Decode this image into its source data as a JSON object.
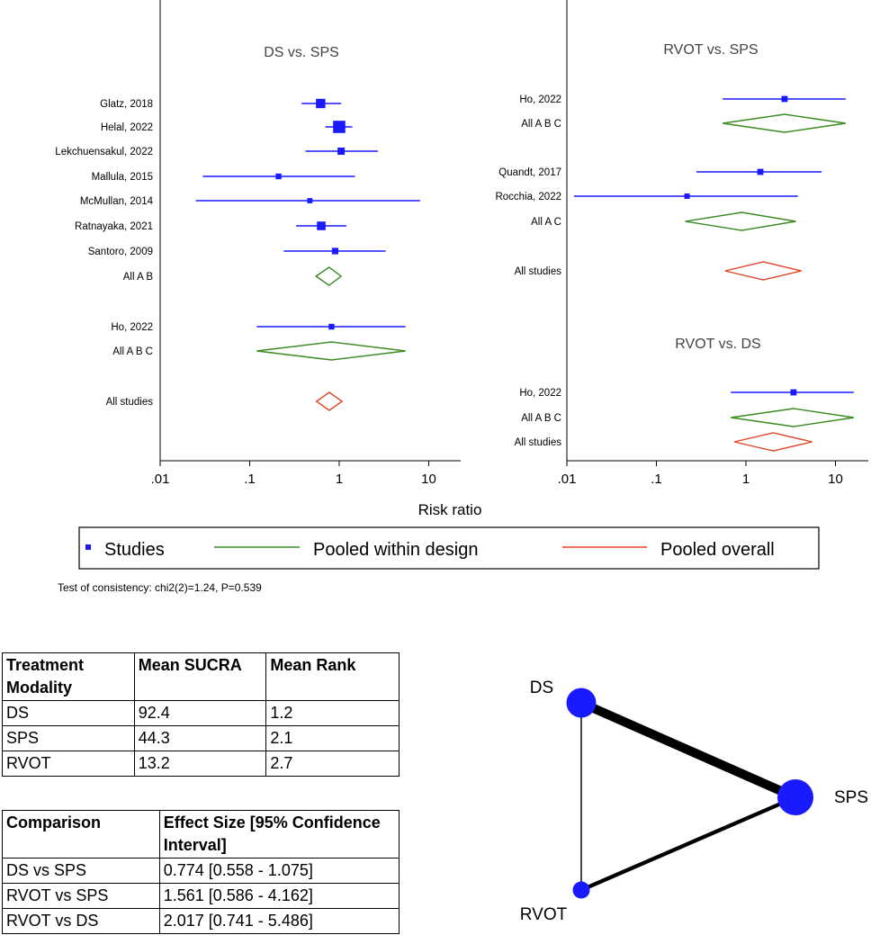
{
  "forest": {
    "xlabel": "Risk ratio",
    "ticks": [
      ".01",
      ".1",
      "1",
      "10"
    ],
    "tick_values": [
      0.01,
      0.1,
      1,
      10
    ],
    "legend": {
      "studies": "Studies",
      "within": "Pooled within design",
      "overall": "Pooled overall"
    },
    "colors": {
      "study": "#1a1aff",
      "within": "#3a8a22",
      "overall": "#e0452a"
    },
    "panels": [
      {
        "title": "DS vs. SPS",
        "rows": [
          {
            "label": "Glatz, 2018",
            "kind": "study",
            "est": 0.62,
            "lo": 0.38,
            "hi": 1.05,
            "weight": 1.6
          },
          {
            "label": "Helal, 2022",
            "kind": "study",
            "est": 1.0,
            "lo": 0.7,
            "hi": 1.4,
            "weight": 2.4
          },
          {
            "label": "Lekchuensakul, 2022",
            "kind": "study",
            "est": 1.05,
            "lo": 0.42,
            "hi": 2.7,
            "weight": 1.0
          },
          {
            "label": "Mallula, 2015",
            "kind": "study",
            "est": 0.21,
            "lo": 0.03,
            "hi": 1.5,
            "weight": 0.6
          },
          {
            "label": "McMullan, 2014",
            "kind": "study",
            "est": 0.47,
            "lo": 0.025,
            "hi": 8.0,
            "weight": 0.45
          },
          {
            "label": "Ratnayaka, 2021",
            "kind": "study",
            "est": 0.63,
            "lo": 0.33,
            "hi": 1.2,
            "weight": 1.4
          },
          {
            "label": "Santoro, 2009",
            "kind": "study",
            "est": 0.9,
            "lo": 0.24,
            "hi": 3.3,
            "weight": 0.8
          },
          {
            "label": "All A B",
            "kind": "within",
            "est": 0.77,
            "lo": 0.55,
            "hi": 1.05
          },
          {
            "label": "Ho, 2022",
            "kind": "study",
            "est": 0.82,
            "lo": 0.12,
            "hi": 5.5,
            "weight": 0.6
          },
          {
            "label": "All A B C",
            "kind": "within",
            "est": 0.82,
            "lo": 0.12,
            "hi": 5.5
          },
          {
            "label": "All studies",
            "kind": "overall",
            "est": 0.774,
            "lo": 0.558,
            "hi": 1.075
          }
        ]
      },
      {
        "title": "RVOT vs. SPS",
        "rows": [
          {
            "label": "Ho, 2022",
            "kind": "study",
            "est": 2.7,
            "lo": 0.55,
            "hi": 13.0,
            "weight": 0.7
          },
          {
            "label": "All A B C",
            "kind": "within",
            "est": 2.7,
            "lo": 0.55,
            "hi": 13.0
          },
          {
            "label": "Quandt, 2017",
            "kind": "study",
            "est": 1.45,
            "lo": 0.28,
            "hi": 7.0,
            "weight": 0.7
          },
          {
            "label": "Rocchia, 2022",
            "kind": "study",
            "est": 0.22,
            "lo": 0.012,
            "hi": 3.8,
            "weight": 0.5
          },
          {
            "label": "All A C",
            "kind": "within",
            "est": 0.9,
            "lo": 0.21,
            "hi": 3.6
          },
          {
            "label": "All studies",
            "kind": "overall",
            "est": 1.561,
            "lo": 0.586,
            "hi": 4.162
          }
        ]
      },
      {
        "title": "RVOT vs. DS",
        "rows": [
          {
            "label": "Ho, 2022",
            "kind": "study",
            "est": 3.4,
            "lo": 0.68,
            "hi": 17.0,
            "weight": 0.7
          },
          {
            "label": "All A B C",
            "kind": "within",
            "est": 3.4,
            "lo": 0.68,
            "hi": 17.0
          },
          {
            "label": "All studies",
            "kind": "overall",
            "est": 2.017,
            "lo": 0.741,
            "hi": 5.486
          }
        ]
      }
    ]
  },
  "consistency_test": "Test of consistency: chi2(2)=1.24, P=0.539",
  "sucra_table": {
    "headers": [
      "Treatment Modality",
      "Mean SUCRA",
      "Mean Rank"
    ],
    "rows": [
      [
        "DS",
        "92.4",
        "1.2"
      ],
      [
        "SPS",
        "44.3",
        "2.1"
      ],
      [
        "RVOT",
        "13.2",
        "2.7"
      ]
    ]
  },
  "effect_table": {
    "headers": [
      "Comparison",
      "Effect Size [95% Confidence Interval]"
    ],
    "rows": [
      [
        "DS vs SPS",
        "0.774 [0.558 - 1.075]"
      ],
      [
        "RVOT vs SPS",
        "1.561 [0.586 - 4.162]"
      ],
      [
        "RVOT vs DS",
        "2.017 [0.741 - 5.486]"
      ]
    ]
  },
  "network": {
    "node_color": "#1a1aff",
    "nodes": [
      {
        "name": "DS",
        "size": 3
      },
      {
        "name": "SPS",
        "size": 4
      },
      {
        "name": "RVOT",
        "size": 1
      }
    ],
    "edges": [
      {
        "from": "DS",
        "to": "SPS",
        "studies": 7
      },
      {
        "from": "DS",
        "to": "RVOT",
        "studies": 1
      },
      {
        "from": "SPS",
        "to": "RVOT",
        "studies": 3
      }
    ]
  }
}
